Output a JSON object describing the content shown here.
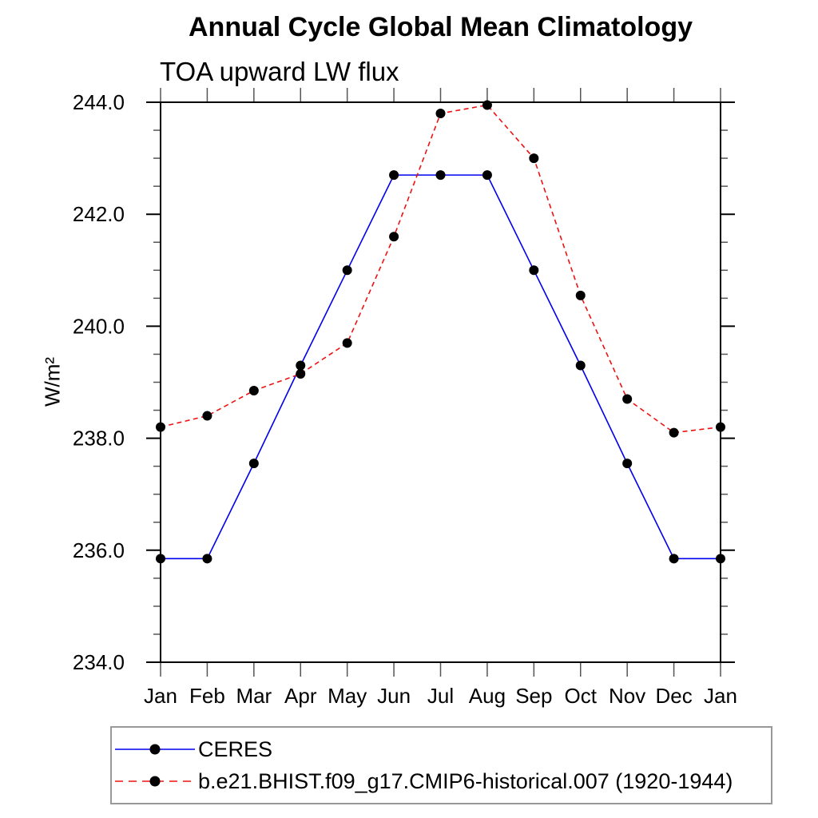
{
  "header": {
    "title": "Annual Cycle Global Mean Climatology",
    "subtitle": "TOA upward LW flux"
  },
  "chart_data": {
    "type": "line",
    "title": "Annual Cycle Global Mean Climatology",
    "subtitle": "TOA upward LW flux",
    "xlabel": "",
    "ylabel": "W/m²",
    "categories": [
      "Jan",
      "Feb",
      "Mar",
      "Apr",
      "May",
      "Jun",
      "Jul",
      "Aug",
      "Sep",
      "Oct",
      "Nov",
      "Dec",
      "Jan"
    ],
    "ylim": [
      234.0,
      244.0
    ],
    "ytick_major_interval": 2.0,
    "ytick_minor_interval": 0.5,
    "ytick_labels": [
      "234.0",
      "236.0",
      "238.0",
      "240.0",
      "242.0",
      "244.0"
    ],
    "grid": false,
    "legend_position": "below-plot-left",
    "frame_color": "#000000",
    "tick_color": "#555555",
    "marker_color": "#000000",
    "series": [
      {
        "name": "CERES",
        "line_color": "#0000ee",
        "line_style": "solid",
        "marker": "filled-circle",
        "values": [
          235.85,
          235.85,
          237.55,
          239.3,
          241.0,
          242.7,
          242.7,
          242.7,
          241.0,
          239.3,
          237.55,
          235.85,
          235.85
        ]
      },
      {
        "name": "b.e21.BHIST.f09_g17.CMIP6-historical.007 (1920-1944)",
        "line_color": "#ee1111",
        "line_style": "dashed",
        "marker": "filled-circle",
        "values": [
          238.2,
          238.4,
          238.85,
          239.15,
          239.7,
          241.6,
          243.8,
          243.95,
          243.0,
          240.55,
          238.7,
          238.1,
          238.2
        ]
      }
    ]
  }
}
